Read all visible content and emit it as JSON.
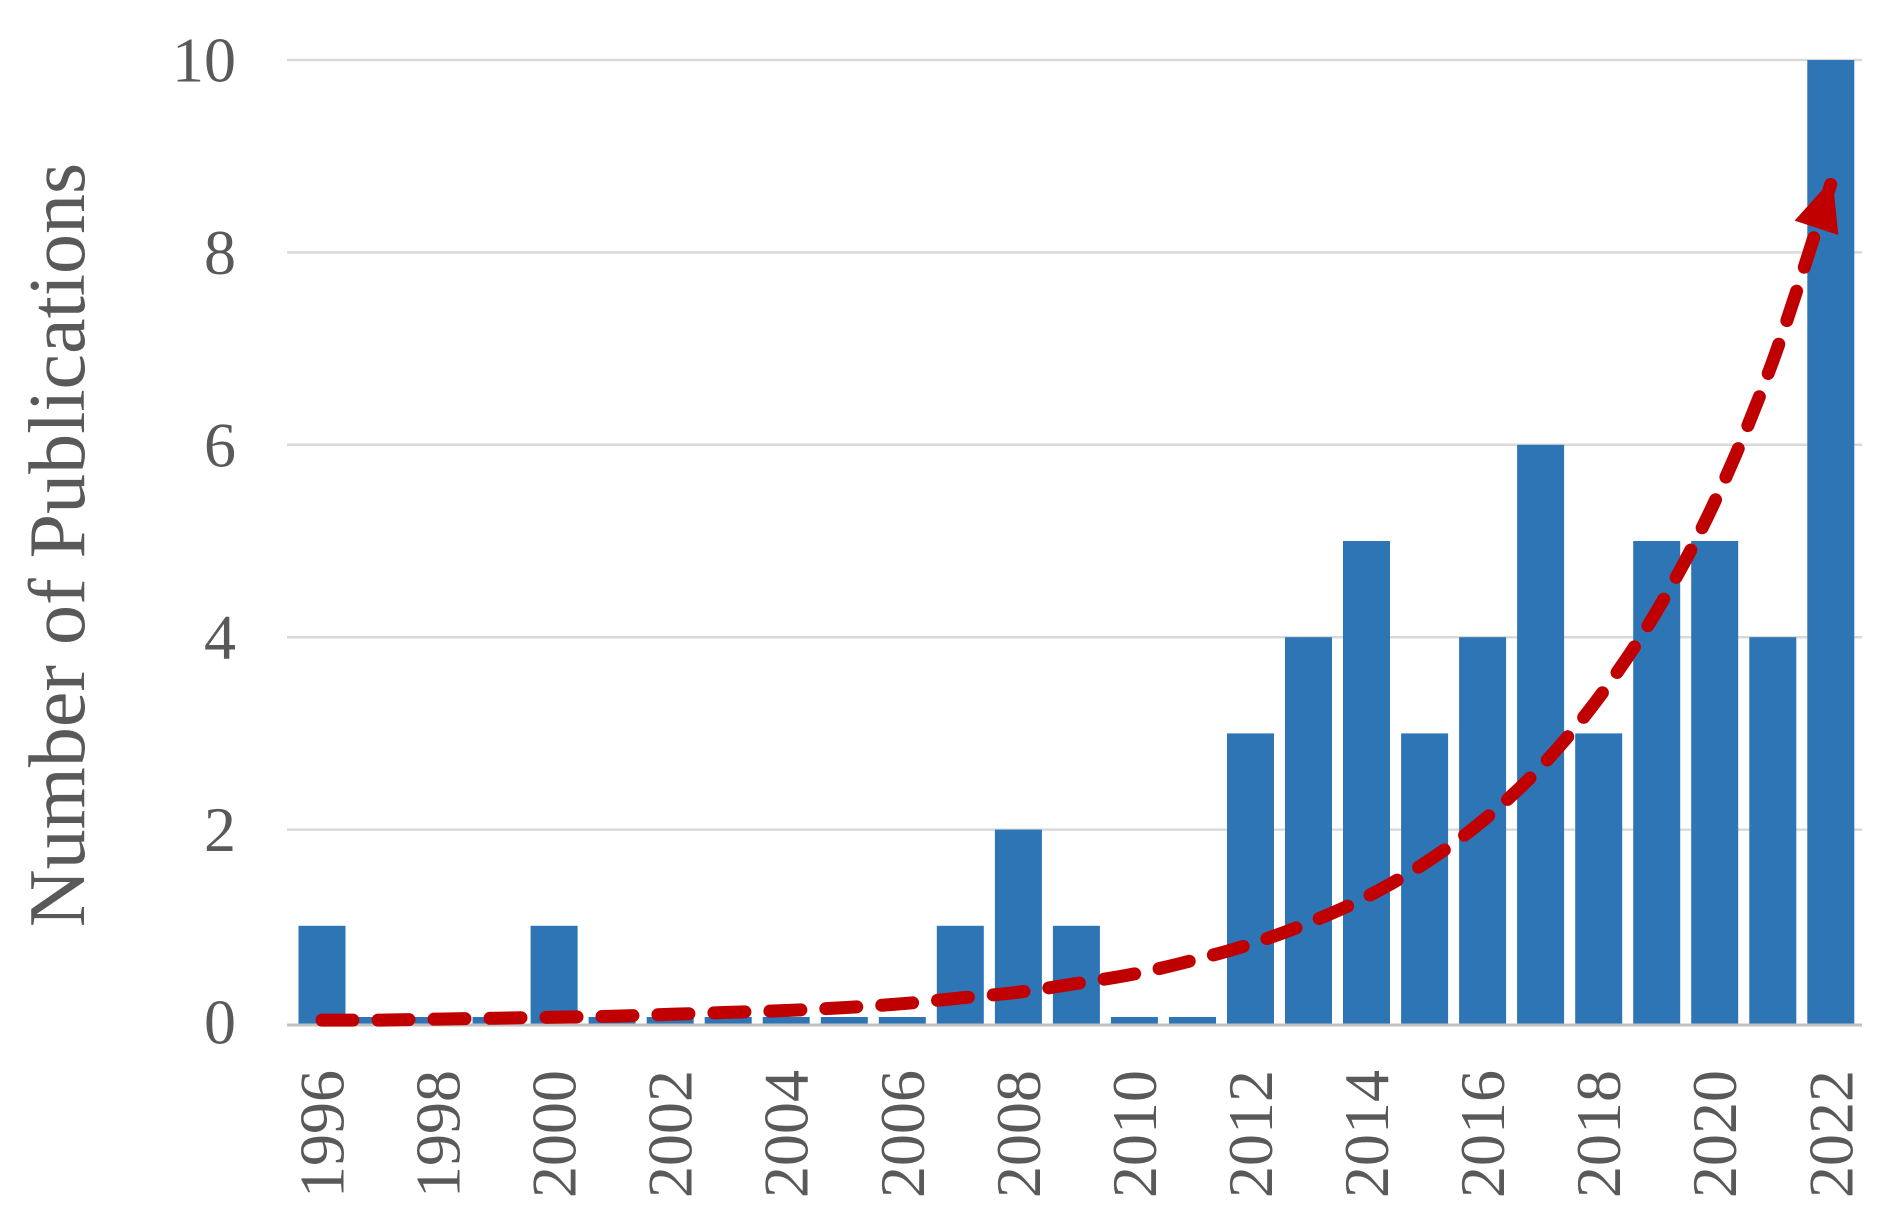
{
  "chart_data": {
    "type": "bar",
    "title": "",
    "xlabel": "",
    "ylabel": "Number of Publications",
    "categories": [
      "1996",
      "1997",
      "1998",
      "1999",
      "2000",
      "2001",
      "2002",
      "2003",
      "2004",
      "2005",
      "2006",
      "2007",
      "2008",
      "2009",
      "2010",
      "2011",
      "2012",
      "2013",
      "2014",
      "2015",
      "2016",
      "2017",
      "2018",
      "2019",
      "2020",
      "2021",
      "2022"
    ],
    "values": [
      1,
      0,
      0,
      0,
      1,
      0,
      0,
      0,
      0,
      0,
      0,
      1,
      2,
      1,
      0,
      0,
      3,
      4,
      5,
      3,
      4,
      6,
      3,
      5,
      5,
      4,
      10
    ],
    "x_tick_labels": [
      "1996",
      "1998",
      "2000",
      "2002",
      "2004",
      "2006",
      "2008",
      "2010",
      "2012",
      "2014",
      "2016",
      "2018",
      "2020",
      "2022"
    ],
    "y_ticks": [
      0,
      2,
      4,
      6,
      8,
      10
    ],
    "ylim": [
      0,
      10.6
    ],
    "grid": "horizontal",
    "legend_position": "none",
    "bar_color": "#2E75B6",
    "gridline_color": "#D9D9D9",
    "axis_line_color": "#C0C0C0",
    "text_color": "#595959",
    "trend_line": {
      "name": "exponential growth trend",
      "style": "dashed",
      "arrow_end": true,
      "color": "#C00000",
      "values": [
        0.02,
        0.02,
        0.03,
        0.04,
        0.05,
        0.06,
        0.08,
        0.1,
        0.12,
        0.15,
        0.19,
        0.25,
        0.31,
        0.4,
        0.5,
        0.64,
        0.81,
        1.03,
        1.3,
        1.65,
        2.09,
        2.65,
        3.37,
        4.27,
        5.41,
        6.87,
        8.71
      ]
    }
  }
}
